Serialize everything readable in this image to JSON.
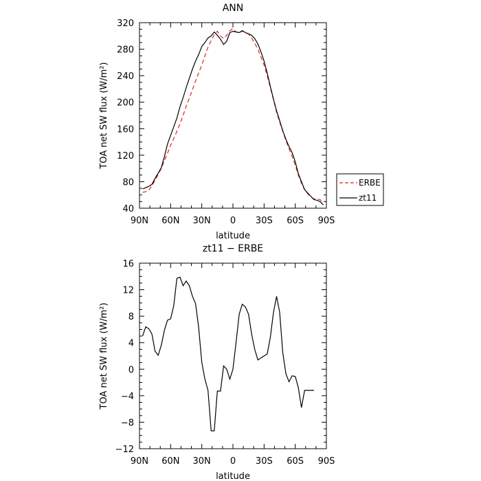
{
  "chart_data": [
    {
      "type": "line",
      "title": "ANN",
      "xlabel": "latitude",
      "ylabel": "TOA net SW flux (W/m²)",
      "xlim": [
        90,
        -90
      ],
      "ylim": [
        40,
        320
      ],
      "xticks": [
        90,
        60,
        30,
        0,
        -30,
        -60,
        -90
      ],
      "xtick_labels": [
        "90N",
        "60N",
        "30N",
        "0",
        "30S",
        "60S",
        "90S"
      ],
      "yticks": [
        40,
        80,
        120,
        160,
        200,
        240,
        280,
        320
      ],
      "ytick_labels": [
        "40",
        "80",
        "120",
        "160",
        "200",
        "240",
        "280",
        "320"
      ],
      "grid": false,
      "legend_position": "right",
      "series": [
        {
          "name": "ERBE",
          "color": "#e0201c",
          "dash": "dashed",
          "x": [
            87,
            84,
            81,
            78,
            75,
            72,
            69,
            66,
            63,
            60,
            57,
            54,
            51,
            48,
            45,
            42,
            39,
            36,
            33,
            30,
            27,
            24,
            21,
            18,
            15,
            12,
            9,
            6,
            3,
            0,
            -3,
            -6,
            -9,
            -12,
            -15,
            -18,
            -21,
            -24,
            -27,
            -30,
            -33,
            -36,
            -39,
            -42,
            -45,
            -48,
            -51,
            -54,
            -57,
            -60,
            -63,
            -66,
            -69,
            -72,
            -75,
            -78,
            -81,
            -84,
            -87
          ],
          "y": [
            64,
            65,
            67,
            74,
            82,
            91,
            100,
            112,
            123,
            135,
            145,
            156,
            167,
            180,
            194,
            206,
            219,
            232,
            244,
            256,
            270,
            283,
            293,
            302,
            307,
            300,
            296,
            301,
            308,
            311,
            306,
            305,
            307,
            306,
            303,
            297,
            289,
            280,
            268,
            256,
            240,
            222,
            204,
            185,
            170,
            156,
            142,
            130,
            118,
            105,
            90,
            78,
            68,
            62,
            57,
            54,
            54,
            53,
            48
          ]
        },
        {
          "name": "zt11",
          "color": "#000000",
          "dash": "solid",
          "x": [
            87,
            84,
            81,
            78,
            75,
            72,
            69,
            66,
            63,
            60,
            57,
            54,
            51,
            48,
            45,
            42,
            39,
            36,
            33,
            30,
            27,
            24,
            21,
            18,
            15,
            12,
            9,
            6,
            3,
            0,
            -3,
            -6,
            -9,
            -12,
            -15,
            -18,
            -21,
            -24,
            -27,
            -30,
            -33,
            -36,
            -39,
            -42,
            -45,
            -48,
            -51,
            -54,
            -57,
            -60,
            -63,
            -66,
            -69,
            -72,
            -75,
            -78,
            -81,
            -84,
            -87
          ],
          "y": [
            69,
            71,
            73,
            76,
            85,
            93,
            101,
            118,
            137,
            150,
            163,
            176,
            193,
            207,
            222,
            236,
            250,
            262,
            272,
            284,
            290,
            297,
            300,
            306,
            301,
            295,
            287,
            292,
            305,
            307,
            306,
            305,
            308,
            305,
            303,
            301,
            296,
            288,
            276,
            262,
            244,
            224,
            205,
            187,
            172,
            157,
            144,
            133,
            124,
            110,
            92,
            80,
            68,
            63,
            58,
            53,
            52,
            50,
            45
          ]
        }
      ]
    },
    {
      "type": "line",
      "title": "zt11 − ERBE",
      "xlabel": "latitude",
      "ylabel": "TOA net SW flux (W/m²)",
      "xlim": [
        90,
        -90
      ],
      "ylim": [
        -12,
        16
      ],
      "xticks": [
        90,
        60,
        30,
        0,
        -30,
        -60,
        -90
      ],
      "xtick_labels": [
        "90N",
        "60N",
        "30N",
        "0",
        "30S",
        "60S",
        "90S"
      ],
      "yticks": [
        -12,
        -8,
        -4,
        0,
        4,
        8,
        12,
        16
      ],
      "ytick_labels": [
        "−12",
        "−8",
        "−4",
        "0",
        "4",
        "8",
        "12",
        "16"
      ],
      "grid": false,
      "series": [
        {
          "color": "#000000",
          "dash": "solid",
          "x": [
            87,
            84,
            81,
            78,
            75,
            72,
            69,
            66,
            63,
            60,
            57,
            54,
            51,
            48,
            45,
            42,
            39,
            36,
            33,
            30,
            27,
            24,
            21,
            18,
            15,
            12,
            9,
            6,
            3,
            0,
            -3,
            -6,
            -9,
            -12,
            -15,
            -18,
            -21,
            -24,
            -27,
            -30,
            -33,
            -36,
            -39,
            -42,
            -45,
            -48,
            -51,
            -54,
            -57,
            -60,
            -63,
            -66,
            -69,
            -72,
            -75,
            -78,
            -81,
            -84,
            -87
          ],
          "y": [
            5.0,
            6.4,
            6.1,
            5.3,
            2.7,
            2.1,
            3.6,
            5.9,
            7.4,
            7.6,
            9.6,
            13.7,
            13.9,
            12.6,
            13.3,
            12.6,
            11.0,
            9.9,
            6.3,
            1.0,
            -1.5,
            -3.2,
            -9.3,
            -9.3,
            -3.3,
            -3.3,
            0.5,
            0.0,
            -1.5,
            0.0,
            4.0,
            8.3,
            9.8,
            9.4,
            8.3,
            5.3,
            3.0,
            1.4,
            1.7,
            2.0,
            2.3,
            4.8,
            8.5,
            11.0,
            8.6,
            2.5,
            -0.7,
            -1.9,
            -1.0,
            -1.1,
            -2.8,
            -5.8,
            -3.2,
            -3.2,
            -3.2,
            -3.2,
            -3.2,
            -3.2,
            -3.2
          ]
        }
      ]
    }
  ]
}
